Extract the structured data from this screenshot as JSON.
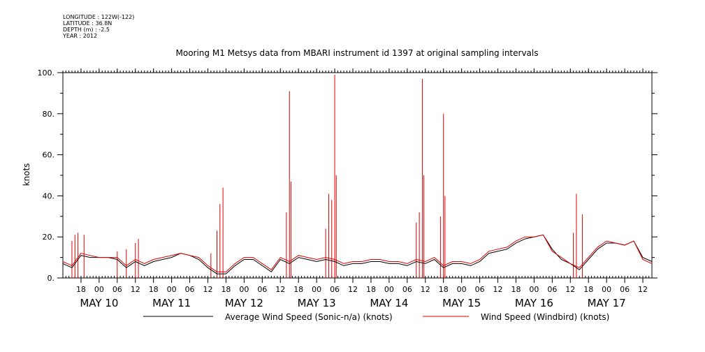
{
  "metadata": {
    "longitude": "LONGITUDE : 122W(-122)",
    "latitude": "LATITUDE : 36.8N",
    "depth": "DEPTH (m) : -2.5",
    "year": "YEAR : 2012"
  },
  "chart_data": {
    "type": "line",
    "title": "Mooring M1 Metsys data from MBARI instrument id 1397 at original sampling intervals",
    "ylabel": "knots",
    "xlabel": "",
    "ylim": [
      0,
      100
    ],
    "xlim": [
      "2012-05-09 12:00",
      "2012-05-17 15:00"
    ],
    "y_ticks": [
      "0.",
      "20.",
      "40.",
      "60.",
      "80.",
      "100."
    ],
    "x_hour_ticks": [
      {
        "t": "2012-05-09 18:00",
        "label": "18"
      },
      {
        "t": "2012-05-10 00:00",
        "label": "00"
      },
      {
        "t": "2012-05-10 06:00",
        "label": "06"
      },
      {
        "t": "2012-05-10 12:00",
        "label": "12"
      },
      {
        "t": "2012-05-10 18:00",
        "label": "18"
      },
      {
        "t": "2012-05-11 00:00",
        "label": "00"
      },
      {
        "t": "2012-05-11 06:00",
        "label": "06"
      },
      {
        "t": "2012-05-11 12:00",
        "label": "12"
      },
      {
        "t": "2012-05-11 18:00",
        "label": "18"
      },
      {
        "t": "2012-05-12 00:00",
        "label": "00"
      },
      {
        "t": "2012-05-12 06:00",
        "label": "06"
      },
      {
        "t": "2012-05-12 12:00",
        "label": "12"
      },
      {
        "t": "2012-05-12 18:00",
        "label": "18"
      },
      {
        "t": "2012-05-13 00:00",
        "label": "00"
      },
      {
        "t": "2012-05-13 06:00",
        "label": "06"
      },
      {
        "t": "2012-05-13 12:00",
        "label": "12"
      },
      {
        "t": "2012-05-13 18:00",
        "label": "18"
      },
      {
        "t": "2012-05-14 00:00",
        "label": "00"
      },
      {
        "t": "2012-05-14 06:00",
        "label": "06"
      },
      {
        "t": "2012-05-14 12:00",
        "label": "12"
      },
      {
        "t": "2012-05-14 18:00",
        "label": "18"
      },
      {
        "t": "2012-05-15 00:00",
        "label": "00"
      },
      {
        "t": "2012-05-15 06:00",
        "label": "06"
      },
      {
        "t": "2012-05-15 12:00",
        "label": "12"
      },
      {
        "t": "2012-05-15 18:00",
        "label": "18"
      },
      {
        "t": "2012-05-16 00:00",
        "label": "00"
      },
      {
        "t": "2012-05-16 06:00",
        "label": "06"
      },
      {
        "t": "2012-05-16 12:00",
        "label": "12"
      },
      {
        "t": "2012-05-16 18:00",
        "label": "18"
      },
      {
        "t": "2012-05-17 00:00",
        "label": "00"
      },
      {
        "t": "2012-05-17 06:00",
        "label": "06"
      },
      {
        "t": "2012-05-17 12:00",
        "label": "12"
      }
    ],
    "x_day_labels": [
      {
        "t": "2012-05-10 00:00",
        "label": "MAY 10"
      },
      {
        "t": "2012-05-11 00:00",
        "label": "MAY 11"
      },
      {
        "t": "2012-05-12 00:00",
        "label": "MAY 12"
      },
      {
        "t": "2012-05-13 00:00",
        "label": "MAY 13"
      },
      {
        "t": "2012-05-14 00:00",
        "label": "MAY 14"
      },
      {
        "t": "2012-05-15 00:00",
        "label": "MAY 15"
      },
      {
        "t": "2012-05-16 00:00",
        "label": "MAY 16"
      },
      {
        "t": "2012-05-17 00:00",
        "label": "MAY 17"
      }
    ],
    "grid": false,
    "legend": "bottom",
    "series": [
      {
        "name": "Average Wind Speed (Sonic-n/a) (knots)",
        "color": "#000000",
        "x": [
          "2012-05-09 12:00",
          "2012-05-09 15:00",
          "2012-05-09 18:00",
          "2012-05-09 21:00",
          "2012-05-10 00:00",
          "2012-05-10 03:00",
          "2012-05-10 06:00",
          "2012-05-10 09:00",
          "2012-05-10 12:00",
          "2012-05-10 15:00",
          "2012-05-10 18:00",
          "2012-05-10 21:00",
          "2012-05-11 00:00",
          "2012-05-11 03:00",
          "2012-05-11 06:00",
          "2012-05-11 09:00",
          "2012-05-11 12:00",
          "2012-05-11 15:00",
          "2012-05-11 18:00",
          "2012-05-11 21:00",
          "2012-05-12 00:00",
          "2012-05-12 03:00",
          "2012-05-12 06:00",
          "2012-05-12 09:00",
          "2012-05-12 12:00",
          "2012-05-12 15:00",
          "2012-05-12 18:00",
          "2012-05-12 21:00",
          "2012-05-13 00:00",
          "2012-05-13 03:00",
          "2012-05-13 06:00",
          "2012-05-13 09:00",
          "2012-05-13 12:00",
          "2012-05-13 15:00",
          "2012-05-13 18:00",
          "2012-05-13 21:00",
          "2012-05-14 00:00",
          "2012-05-14 03:00",
          "2012-05-14 06:00",
          "2012-05-14 09:00",
          "2012-05-14 12:00",
          "2012-05-14 15:00",
          "2012-05-14 18:00",
          "2012-05-14 21:00",
          "2012-05-15 00:00",
          "2012-05-15 03:00",
          "2012-05-15 06:00",
          "2012-05-15 09:00",
          "2012-05-15 12:00",
          "2012-05-15 15:00",
          "2012-05-15 18:00",
          "2012-05-15 21:00",
          "2012-05-16 00:00",
          "2012-05-16 03:00",
          "2012-05-16 06:00",
          "2012-05-16 09:00",
          "2012-05-16 12:00",
          "2012-05-16 15:00",
          "2012-05-16 18:00",
          "2012-05-16 21:00",
          "2012-05-17 00:00",
          "2012-05-17 03:00",
          "2012-05-17 06:00",
          "2012-05-17 09:00",
          "2012-05-17 12:00",
          "2012-05-17 15:00"
        ],
        "values": [
          7,
          5,
          11,
          10,
          10,
          10,
          9,
          5,
          8,
          6,
          8,
          9,
          10,
          12,
          11,
          9,
          5,
          2,
          2,
          6,
          9,
          9,
          6,
          3,
          9,
          7,
          10,
          9,
          8,
          9,
          8,
          6,
          7,
          7,
          8,
          8,
          7,
          7,
          6,
          8,
          7,
          9,
          5,
          7,
          7,
          6,
          8,
          12,
          13,
          14,
          17,
          19,
          20,
          21,
          14,
          9,
          7,
          4,
          9,
          14,
          17,
          17,
          16,
          18,
          10,
          8
        ]
      },
      {
        "name": "Wind Speed (Windbird) (knots)",
        "color": "#e00000",
        "x": [
          "2012-05-09 12:00",
          "2012-05-09 15:00",
          "2012-05-09 18:00",
          "2012-05-09 21:00",
          "2012-05-10 00:00",
          "2012-05-10 03:00",
          "2012-05-10 06:00",
          "2012-05-10 09:00",
          "2012-05-10 12:00",
          "2012-05-10 15:00",
          "2012-05-10 18:00",
          "2012-05-10 21:00",
          "2012-05-11 00:00",
          "2012-05-11 03:00",
          "2012-05-11 06:00",
          "2012-05-11 09:00",
          "2012-05-11 12:00",
          "2012-05-11 15:00",
          "2012-05-11 18:00",
          "2012-05-11 21:00",
          "2012-05-12 00:00",
          "2012-05-12 03:00",
          "2012-05-12 06:00",
          "2012-05-12 09:00",
          "2012-05-12 12:00",
          "2012-05-12 15:00",
          "2012-05-12 18:00",
          "2012-05-12 21:00",
          "2012-05-13 00:00",
          "2012-05-13 03:00",
          "2012-05-13 06:00",
          "2012-05-13 09:00",
          "2012-05-13 12:00",
          "2012-05-13 15:00",
          "2012-05-13 18:00",
          "2012-05-13 21:00",
          "2012-05-14 00:00",
          "2012-05-14 03:00",
          "2012-05-14 06:00",
          "2012-05-14 09:00",
          "2012-05-14 12:00",
          "2012-05-14 15:00",
          "2012-05-14 18:00",
          "2012-05-14 21:00",
          "2012-05-15 00:00",
          "2012-05-15 03:00",
          "2012-05-15 06:00",
          "2012-05-15 09:00",
          "2012-05-15 12:00",
          "2012-05-15 15:00",
          "2012-05-15 18:00",
          "2012-05-15 21:00",
          "2012-05-16 00:00",
          "2012-05-16 03:00",
          "2012-05-16 06:00",
          "2012-05-16 09:00",
          "2012-05-16 12:00",
          "2012-05-16 15:00",
          "2012-05-16 18:00",
          "2012-05-16 21:00",
          "2012-05-17 00:00",
          "2012-05-17 03:00",
          "2012-05-17 06:00",
          "2012-05-17 09:00",
          "2012-05-17 12:00",
          "2012-05-17 15:00"
        ],
        "values": [
          8,
          6,
          12,
          11,
          10,
          10,
          10,
          6,
          9,
          7,
          9,
          10,
          11,
          12,
          11,
          10,
          6,
          3,
          3,
          7,
          10,
          10,
          7,
          4,
          10,
          8,
          11,
          10,
          9,
          10,
          9,
          7,
          8,
          8,
          9,
          9,
          8,
          8,
          7,
          9,
          8,
          10,
          6,
          8,
          8,
          7,
          9,
          13,
          14,
          15,
          18,
          20,
          20,
          21,
          13,
          10,
          7,
          5,
          10,
          15,
          18,
          17,
          16,
          18,
          9,
          7
        ]
      }
    ],
    "spikes": [
      {
        "t": "2012-05-09 15:00",
        "value": 18
      },
      {
        "t": "2012-05-09 16:00",
        "value": 21
      },
      {
        "t": "2012-05-09 17:00",
        "value": 22
      },
      {
        "t": "2012-05-09 19:00",
        "value": 21
      },
      {
        "t": "2012-05-10 06:00",
        "value": 13
      },
      {
        "t": "2012-05-10 09:00",
        "value": 14
      },
      {
        "t": "2012-05-10 12:00",
        "value": 17
      },
      {
        "t": "2012-05-10 13:00",
        "value": 19
      },
      {
        "t": "2012-05-11 13:00",
        "value": 12
      },
      {
        "t": "2012-05-11 15:00",
        "value": 23
      },
      {
        "t": "2012-05-11 16:00",
        "value": 36
      },
      {
        "t": "2012-05-11 17:00",
        "value": 44
      },
      {
        "t": "2012-05-12 14:00",
        "value": 32
      },
      {
        "t": "2012-05-12 15:00",
        "value": 91
      },
      {
        "t": "2012-05-12 15:30",
        "value": 47
      },
      {
        "t": "2012-05-13 03:00",
        "value": 24
      },
      {
        "t": "2012-05-13 04:00",
        "value": 41
      },
      {
        "t": "2012-05-13 05:00",
        "value": 38
      },
      {
        "t": "2012-05-13 06:00",
        "value": 99
      },
      {
        "t": "2012-05-13 06:30",
        "value": 50
      },
      {
        "t": "2012-05-14 09:00",
        "value": 27
      },
      {
        "t": "2012-05-14 10:00",
        "value": 32
      },
      {
        "t": "2012-05-14 11:00",
        "value": 97
      },
      {
        "t": "2012-05-14 11:30",
        "value": 50
      },
      {
        "t": "2012-05-14 17:00",
        "value": 30
      },
      {
        "t": "2012-05-14 18:00",
        "value": 80
      },
      {
        "t": "2012-05-14 18:30",
        "value": 40
      },
      {
        "t": "2012-05-16 13:00",
        "value": 22
      },
      {
        "t": "2012-05-16 14:00",
        "value": 41
      },
      {
        "t": "2012-05-16 16:00",
        "value": 31
      }
    ]
  }
}
